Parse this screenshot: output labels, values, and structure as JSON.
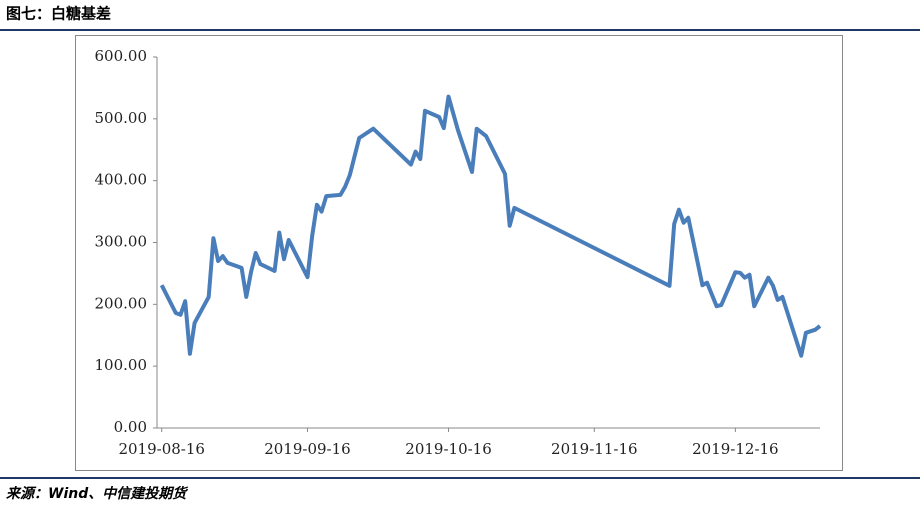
{
  "chart_data": {
    "type": "line",
    "title": "图七：白糖基差",
    "source": "来源：Wind、中信建投期货",
    "x": [
      "2019-08-16",
      "2019-08-19",
      "2019-08-20",
      "2019-08-21",
      "2019-08-22",
      "2019-08-23",
      "2019-08-26",
      "2019-08-27",
      "2019-08-28",
      "2019-08-29",
      "2019-08-30",
      "2019-09-02",
      "2019-09-03",
      "2019-09-04",
      "2019-09-05",
      "2019-09-06",
      "2019-09-09",
      "2019-09-10",
      "2019-09-11",
      "2019-09-12",
      "2019-09-16",
      "2019-09-17",
      "2019-09-18",
      "2019-09-19",
      "2019-09-20",
      "2019-09-23",
      "2019-09-24",
      "2019-09-25",
      "2019-09-27",
      "2019-09-30",
      "2019-10-08",
      "2019-10-09",
      "2019-10-10",
      "2019-10-11",
      "2019-10-14",
      "2019-10-15",
      "2019-10-16",
      "2019-10-18",
      "2019-10-21",
      "2019-10-22",
      "2019-10-24",
      "2019-10-28",
      "2019-10-29",
      "2019-10-30",
      "2019-12-02",
      "2019-12-03",
      "2019-12-04",
      "2019-12-05",
      "2019-12-06",
      "2019-12-09",
      "2019-12-10",
      "2019-12-12",
      "2019-12-13",
      "2019-12-16",
      "2019-12-17",
      "2019-12-18",
      "2019-12-19",
      "2019-12-20",
      "2019-12-23",
      "2019-12-24",
      "2019-12-25",
      "2019-12-26",
      "2019-12-30",
      "2019-12-31",
      "2020-01-02",
      "2020-01-03"
    ],
    "series": [
      {
        "color": "#4a7ebb",
        "values": [
          231,
          186,
          183,
          205,
          120,
          170,
          212,
          307,
          270,
          278,
          267,
          259,
          212,
          252,
          283,
          265,
          254,
          316,
          273,
          304,
          244,
          311,
          361,
          350,
          375,
          377,
          390,
          409,
          469,
          484,
          426,
          447,
          435,
          513,
          503,
          485,
          536,
          482,
          414,
          484,
          472,
          411,
          327,
          356,
          230,
          330,
          353,
          332,
          340,
          231,
          235,
          197,
          199,
          252,
          251,
          243,
          248,
          197,
          243,
          230,
          207,
          212,
          117,
          154,
          159,
          165
        ]
      }
    ],
    "xlim": [
      "2019-08-15",
      "2020-01-03"
    ],
    "xticks": [
      "2019-08-16",
      "2019-09-16",
      "2019-10-16",
      "2019-11-16",
      "2019-12-16"
    ],
    "ylim": [
      0,
      600
    ],
    "yticks": [
      {
        "value": 0,
        "label": "0.00"
      },
      {
        "value": 100,
        "label": "100.00"
      },
      {
        "value": 200,
        "label": "200.00"
      },
      {
        "value": 300,
        "label": "300.00"
      },
      {
        "value": 400,
        "label": "400.00"
      },
      {
        "value": 500,
        "label": "500.00"
      },
      {
        "value": 600,
        "label": "600.00"
      }
    ]
  }
}
